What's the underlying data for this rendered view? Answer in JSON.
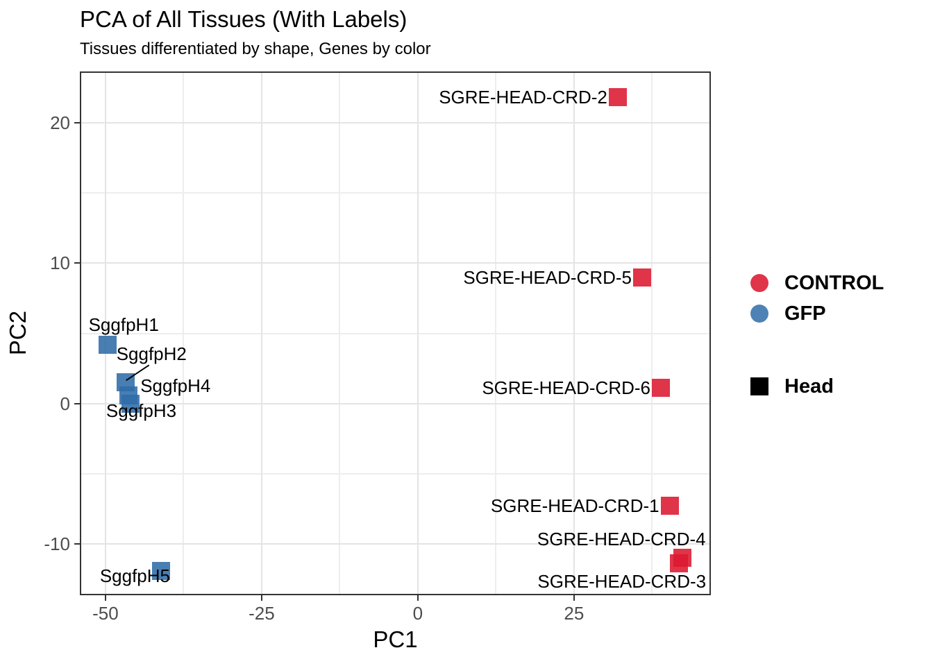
{
  "title": "PCA of All Tissues (With Labels)",
  "subtitle": "Tissues differentiated by shape, Genes by color",
  "chart_data": {
    "type": "scatter",
    "title": "PCA of All Tissues (With Labels)",
    "subtitle": "Tissues differentiated by shape, Genes by color",
    "xlabel": "PC1",
    "ylabel": "PC2",
    "xlim": [
      -54.1,
      46.9
    ],
    "ylim": [
      -13.65,
      23.65
    ],
    "x_ticks": [
      -50,
      -25,
      0,
      25
    ],
    "x_minor_ticks": [
      -37.5,
      -12.5,
      12.5,
      37.5
    ],
    "y_ticks": [
      -10,
      0,
      10,
      20
    ],
    "y_minor_ticks": [
      -5,
      5,
      15
    ],
    "grid": true,
    "legend_position": "right",
    "marker_shape": "square",
    "marker_alpha": 0.88,
    "series": [
      {
        "name": "CONTROL",
        "color": "#E0344B",
        "marker_fill": "#DC182F",
        "points": [
          {
            "label": "SGRE-HEAD-CRD-2",
            "x": 32.0,
            "y": 21.8,
            "label_anchor": "end",
            "label_dx": -15,
            "label_dy": 0
          },
          {
            "label": "SGRE-HEAD-CRD-5",
            "x": 35.9,
            "y": 9.0,
            "label_anchor": "end",
            "label_dx": -15,
            "label_dy": 0
          },
          {
            "label": "SGRE-HEAD-CRD-6",
            "x": 38.9,
            "y": 1.1,
            "label_anchor": "end",
            "label_dx": -15,
            "label_dy": 0
          },
          {
            "label": "SGRE-HEAD-CRD-1",
            "x": 40.3,
            "y": -7.3,
            "label_anchor": "end",
            "label_dx": -15,
            "label_dy": 0
          },
          {
            "label": "SGRE-HEAD-CRD-4",
            "x": 42.3,
            "y": -11.0,
            "label_anchor": "end",
            "label_dx": 34,
            "label_dy": -27
          },
          {
            "label": "SGRE-HEAD-CRD-3",
            "x": 41.8,
            "y": -11.4,
            "label_anchor": "end",
            "label_dx": 39,
            "label_dy": 26
          }
        ]
      },
      {
        "name": "GFP",
        "color": "#4E82B4",
        "marker_fill": "#2F6CA7",
        "points": [
          {
            "label": "SggfpH1",
            "x": -49.7,
            "y": 4.2,
            "label_anchor": "start",
            "label_dx": -27,
            "label_dy": -29
          },
          {
            "label": "SggfpH2",
            "x": -46.8,
            "y": 1.5,
            "label_anchor": "start",
            "label_dx": -13,
            "label_dy": -41,
            "leader_line": true
          },
          {
            "label": "SggfpH4",
            "x": -46.3,
            "y": 0.6,
            "label_anchor": "start",
            "label_dx": 17,
            "label_dy": -14
          },
          {
            "label": "SggfpH3",
            "x": -46.0,
            "y": 0.0,
            "label_anchor": "start",
            "label_dx": -35,
            "label_dy": 10
          },
          {
            "label": "SggfpH5",
            "x": -41.1,
            "y": -11.9,
            "label_anchor": "end",
            "label_dx": 13,
            "label_dy": 7
          }
        ]
      }
    ]
  },
  "legend": {
    "color_items": [
      {
        "label": "CONTROL",
        "color": "#E0344B",
        "marker": "circle"
      },
      {
        "label": "GFP",
        "color": "#4E82B4",
        "marker": "circle"
      }
    ],
    "shape_items": [
      {
        "label": "Head",
        "color": "#000000",
        "marker": "square"
      }
    ]
  },
  "colors": {
    "control_red": "#E0344B",
    "gfp_blue": "#4E82B4",
    "head_black": "#000000",
    "grid_major": "#E4E4E4",
    "grid_minor": "#EDEDED",
    "panel_border": "#333333",
    "tick_label": "#4D4D4D"
  }
}
